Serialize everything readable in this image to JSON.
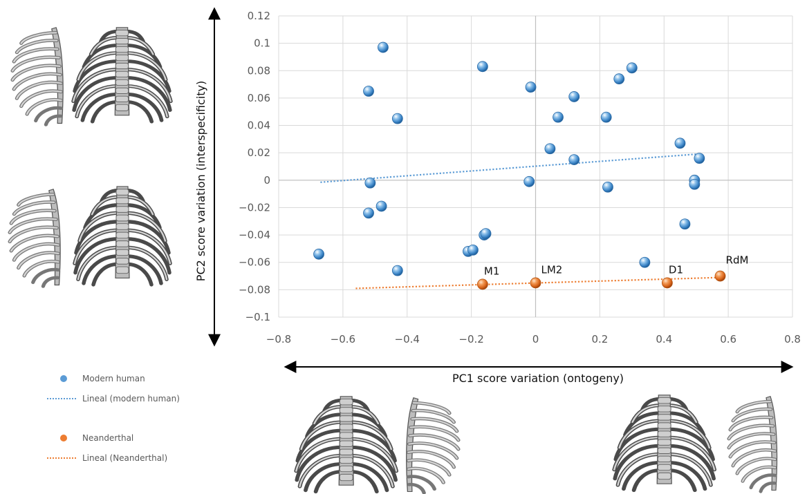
{
  "chart_data": {
    "type": "scatter",
    "title": "",
    "xlabel": "PC1 score variation (ontogeny)",
    "ylabel": "PC2 score variation (interspecificity)",
    "xlim": [
      -0.8,
      0.8
    ],
    "ylim": [
      -0.1,
      0.12
    ],
    "x_ticks": [
      "−0.8",
      "−0.6",
      "−0.4",
      "−0.2",
      "0",
      "0.2",
      "0.4",
      "0.6",
      "0.8"
    ],
    "y_ticks": [
      "0.12",
      "0.1",
      "0.08",
      "0.06",
      "0.04",
      "0.02",
      "0",
      "−0.02",
      "−0.04",
      "−0.06",
      "−0.08",
      "−0.1"
    ],
    "grid": true,
    "legend_placement": "bottom-left, outside plot",
    "series": [
      {
        "name": "Modern human",
        "color": "#5b9bd5",
        "points": [
          [
            -0.475,
            0.097
          ],
          [
            -0.165,
            0.083
          ],
          [
            -0.52,
            0.065
          ],
          [
            -0.015,
            0.068
          ],
          [
            0.3,
            0.082
          ],
          [
            0.26,
            0.074
          ],
          [
            0.12,
            0.061
          ],
          [
            -0.43,
            0.045
          ],
          [
            0.07,
            0.046
          ],
          [
            0.22,
            0.046
          ],
          [
            0.45,
            0.027
          ],
          [
            0.045,
            0.023
          ],
          [
            0.12,
            0.015
          ],
          [
            0.51,
            0.016
          ],
          [
            -0.515,
            -0.002
          ],
          [
            -0.02,
            -0.001
          ],
          [
            0.495,
            0.0
          ],
          [
            0.495,
            -0.003
          ],
          [
            0.225,
            -0.005
          ],
          [
            -0.48,
            -0.019
          ],
          [
            -0.52,
            -0.024
          ],
          [
            0.465,
            -0.032
          ],
          [
            -0.16,
            -0.04
          ],
          [
            -0.155,
            -0.039
          ],
          [
            -0.21,
            -0.052
          ],
          [
            -0.195,
            -0.051
          ],
          [
            -0.675,
            -0.054
          ],
          [
            0.34,
            -0.06
          ],
          [
            -0.43,
            -0.066
          ]
        ],
        "trendline": {
          "name": "Lineal (modern human)",
          "from": [
            -0.67,
            -0.0015
          ],
          "to": [
            0.5,
            0.019
          ],
          "color": "#5b9bd5"
        }
      },
      {
        "name": "Neanderthal",
        "color": "#ed7d31",
        "points": [
          {
            "x": -0.165,
            "y": -0.076,
            "label": "M1"
          },
          {
            "x": 0.0,
            "y": -0.075,
            "label": "LM2"
          },
          {
            "x": 0.41,
            "y": -0.075,
            "label": "D1"
          },
          {
            "x": 0.575,
            "y": -0.07,
            "label": "RdM"
          }
        ],
        "trendline": {
          "name": "Lineal (Neanderthal)",
          "from": [
            -0.56,
            -0.079
          ],
          "to": [
            0.58,
            -0.071
          ],
          "color": "#ed7d31"
        }
      }
    ],
    "legend": [
      {
        "label": "Modern human",
        "kind": "marker",
        "color": "#5b9bd5"
      },
      {
        "label": "Lineal (modern human)",
        "kind": "line",
        "color": "#5b9bd5"
      },
      {
        "label": "Neanderthal",
        "kind": "marker",
        "color": "#ed7d31"
      },
      {
        "label": "Lineal (Neanderthal)",
        "kind": "line",
        "color": "#ed7d31"
      }
    ],
    "annotations": [
      {
        "kind": "double-arrow",
        "axis": "vertical",
        "meaning": "PC2"
      },
      {
        "kind": "double-arrow",
        "axis": "horizontal",
        "meaning": "PC1"
      }
    ]
  },
  "illustrations": [
    {
      "name": "ribcage-top-left-lateral-icon",
      "depicts": "rib cage, lateral view"
    },
    {
      "name": "ribcage-top-left-frontal-icon",
      "depicts": "rib cage, posterior view"
    },
    {
      "name": "ribcage-mid-left-lateral-icon",
      "depicts": "rib cage, lateral view"
    },
    {
      "name": "ribcage-mid-left-frontal-icon",
      "depicts": "rib cage, posterior view"
    },
    {
      "name": "ribcage-bottom-center-frontal-icon",
      "depicts": "rib cage, posterior view"
    },
    {
      "name": "ribcage-bottom-center-lateral-icon",
      "depicts": "rib cage, lateral view"
    },
    {
      "name": "ribcage-bottom-right-frontal-icon",
      "depicts": "rib cage, posterior view"
    },
    {
      "name": "ribcage-bottom-right-lateral-icon",
      "depicts": "rib cage, lateral view"
    }
  ]
}
